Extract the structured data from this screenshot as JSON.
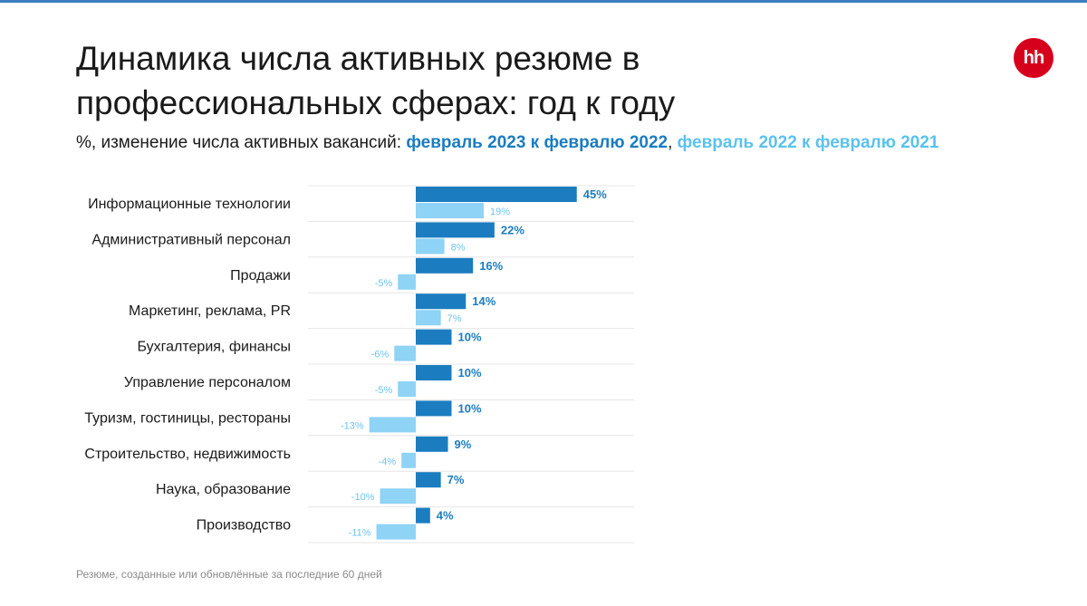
{
  "title": "Динамика числа активных резюме в профессиональных сферах: год к году",
  "subtitle": {
    "prefix": "%, изменение числа активных вакансий: ",
    "series1": "февраль 2023 к февралю 2022",
    "separator": ", ",
    "series2": "февраль 2022 к февралю 2021"
  },
  "logo_text": "hh",
  "footnote": "Резюме, созданные или обновлённые за последние 60 дней",
  "colors": {
    "series_2023": "#1b7dc0",
    "series_2022": "#8fd3f6",
    "label_2023": "#1b7dc0",
    "label_2022": "#6cc5ef",
    "grid": "#e6e6e6",
    "logo": "#d6001c"
  },
  "chart_data": {
    "type": "bar",
    "orientation": "horizontal",
    "categories": [
      "Информационные технологии",
      "Административный персонал",
      "Продажи",
      "Маркетинг, реклама, PR",
      "Бухгалтерия, финансы",
      "Управление персоналом",
      "Туризм, гостиницы, рестораны",
      "Строительство, недвижимость",
      "Наука, образование",
      "Производство"
    ],
    "series": [
      {
        "name": "февраль 2023 к февралю 2022",
        "values": [
          45,
          22,
          16,
          14,
          10,
          10,
          10,
          9,
          7,
          4
        ],
        "labels": [
          "45%",
          "22%",
          "16%",
          "14%",
          "10%",
          "10%",
          "10%",
          "9%",
          "7%",
          "4%"
        ]
      },
      {
        "name": "февраль 2022 к февралю 2021",
        "values": [
          19,
          8,
          -5,
          7,
          -6,
          -5,
          -13,
          -4,
          -10,
          -11
        ],
        "labels": [
          "19%",
          "8%",
          "-5%",
          "7%",
          "-6%",
          "-5%",
          "-13%",
          "-4%",
          "-10%",
          "-11%"
        ]
      }
    ],
    "grid": true,
    "legend": "subtitle"
  }
}
